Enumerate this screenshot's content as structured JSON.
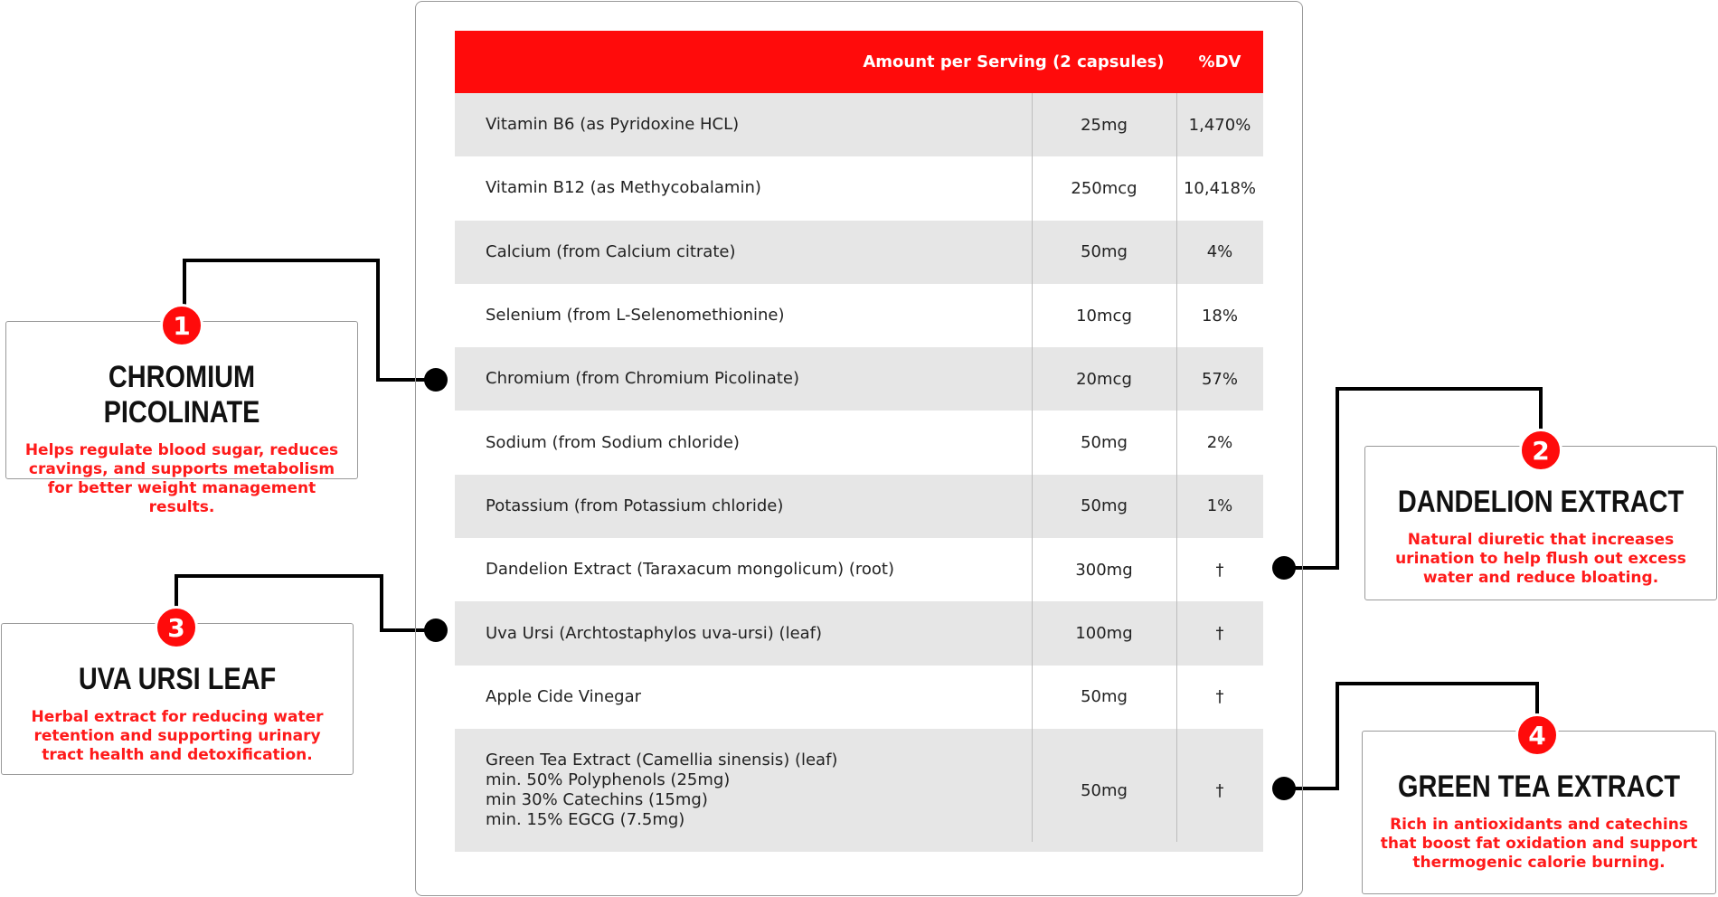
{
  "table": {
    "header": [
      "Amount per Serving (2 capsules)",
      "%DV"
    ],
    "rows": [
      [
        [
          "Vitamin B6 (as Pyridoxine HCL)"
        ],
        "25mg",
        "1,470%"
      ],
      [
        [
          "Vitamin B12 (as Methycobalamin)"
        ],
        "250mcg",
        "10,418%"
      ],
      [
        [
          "Calcium (from Calcium citrate)"
        ],
        "50mg",
        "4%"
      ],
      [
        [
          "Selenium (from L-Selenomethionine)"
        ],
        "10mcg",
        "18%"
      ],
      [
        [
          "Chromium (from Chromium Picolinate)"
        ],
        "20mcg",
        "57%"
      ],
      [
        [
          "Sodium (from Sodium chloride)"
        ],
        "50mg",
        "2%"
      ],
      [
        [
          "Potassium (from Potassium chloride)"
        ],
        "50mg",
        "1%"
      ],
      [
        [
          "Dandelion Extract (Taraxacum mongolicum) (root)"
        ],
        "300mg",
        "†"
      ],
      [
        [
          "Uva Ursi (Archtostaphylos uva-ursi) (leaf)"
        ],
        "100mg",
        "†"
      ],
      [
        [
          "Apple Cide Vinegar"
        ],
        "50mg",
        "†"
      ],
      [
        [
          "Green Tea Extract (Camellia sinensis) (leaf)",
          "min. 50% Polyphenols (25mg)",
          "min 30% Catechins (15mg)",
          "min. 15% EGCG (7.5mg)"
        ],
        "50mg",
        "†"
      ]
    ]
  },
  "callouts": [
    {
      "number": "1",
      "title": "CHROMIUM PICOLINATE",
      "text": "Helps regulate blood sugar, reduces cravings, and supports metabolism for better weight management results."
    },
    {
      "number": "2",
      "title": "DANDELION EXTRACT",
      "text": "Natural diuretic that increases urination to help flush out excess water and reduce bloating."
    },
    {
      "number": "3",
      "title": "UVA URSI LEAF",
      "text": "Herbal extract for reducing water retention and supporting urinary tract health and detoxification."
    },
    {
      "number": "4",
      "title": "GREEN TEA EXTRACT",
      "text": "Rich in antioxidants and catechins that boost fat oxidation and support thermogenic calorie burning."
    }
  ]
}
